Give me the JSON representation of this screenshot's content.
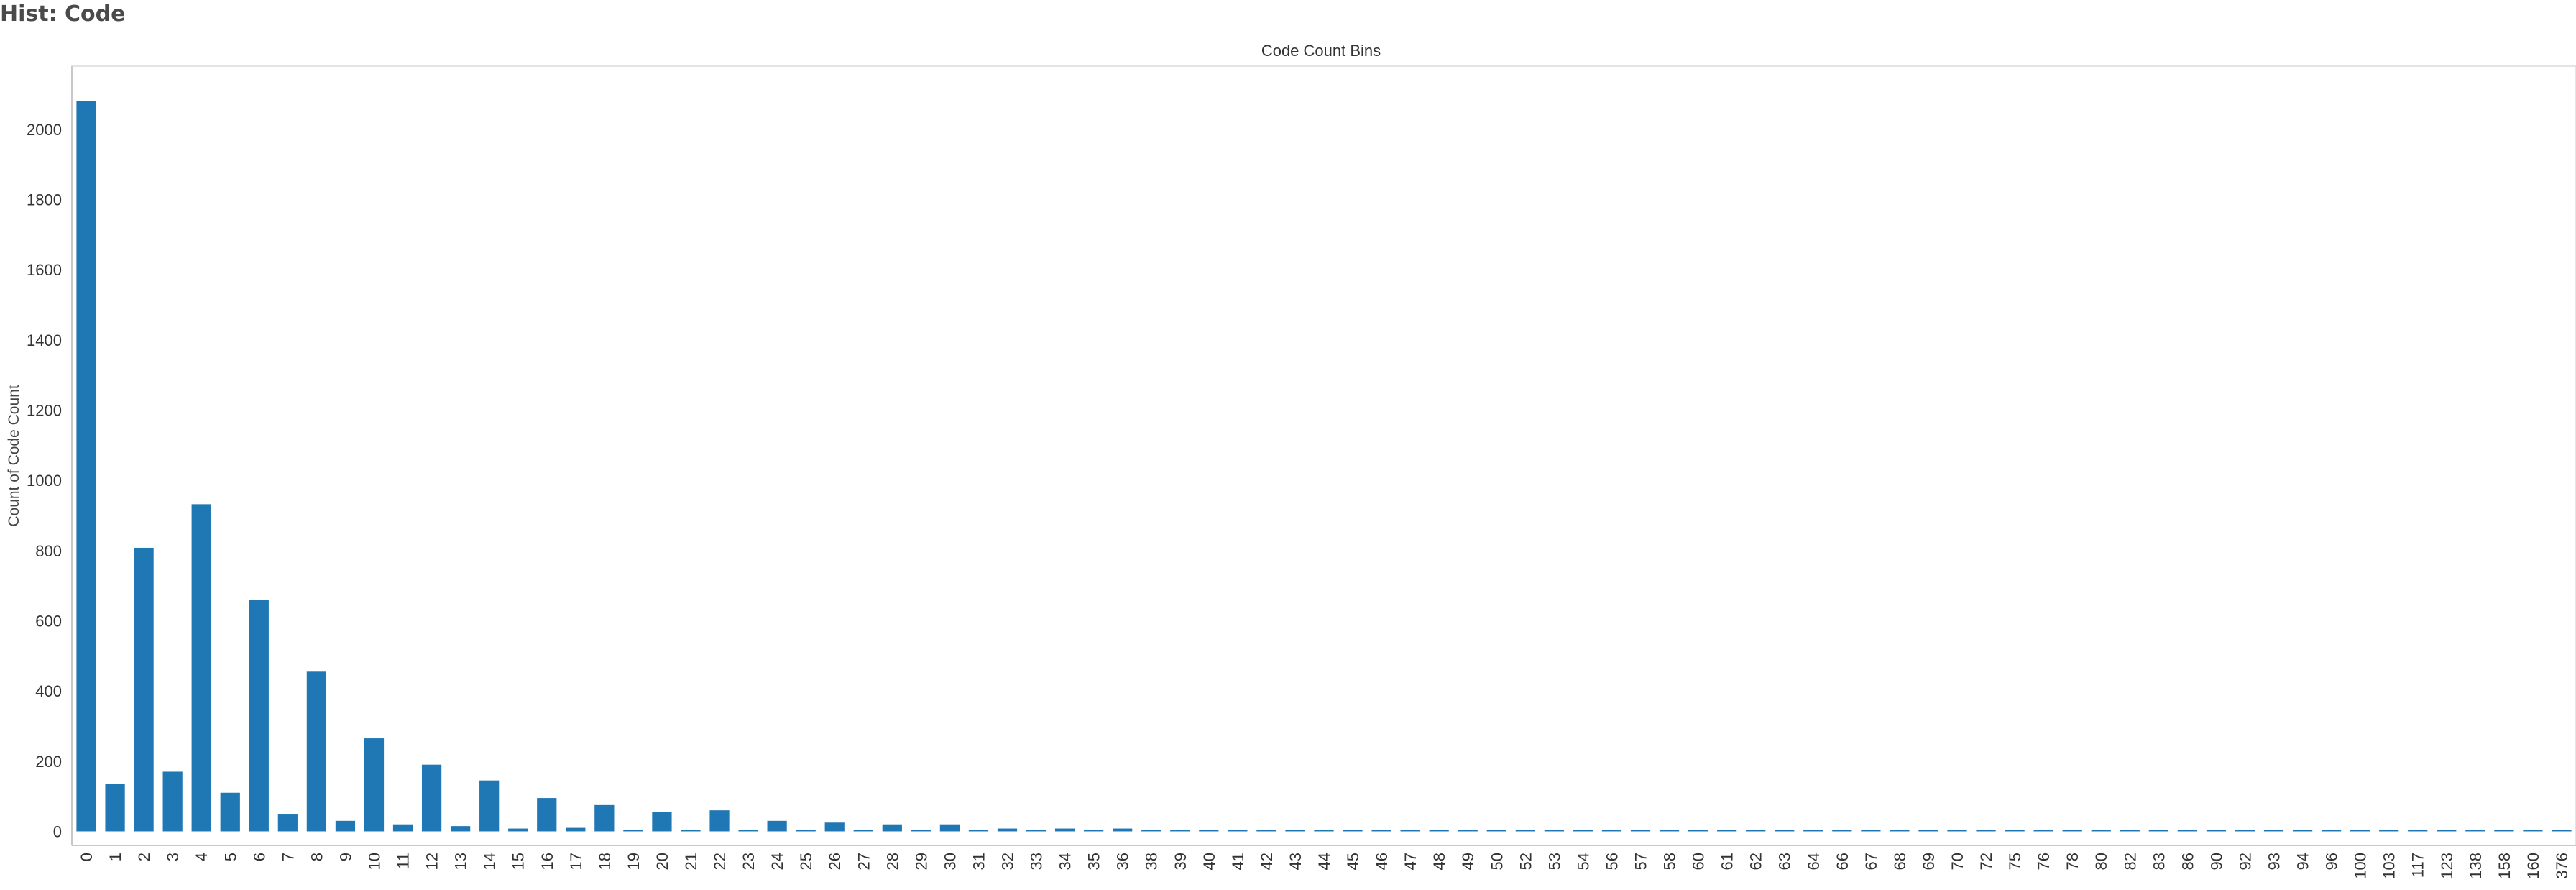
{
  "page": {
    "title": "Hist: Code"
  },
  "colors": {
    "bar": "#1f77b4",
    "axis": "#c8c8c8",
    "text": "#333333"
  },
  "chart_data": {
    "type": "bar",
    "title": "Code Count Bins",
    "xlabel": "",
    "ylabel": "Count of Code Count",
    "ylim": [
      -40,
      2180
    ],
    "yticks": [
      0,
      200,
      400,
      600,
      800,
      1000,
      1200,
      1400,
      1600,
      1800,
      2000
    ],
    "grid": false,
    "categories": [
      "0",
      "1",
      "2",
      "3",
      "4",
      "5",
      "6",
      "7",
      "8",
      "9",
      "10",
      "11",
      "12",
      "13",
      "14",
      "15",
      "16",
      "17",
      "18",
      "19",
      "20",
      "21",
      "22",
      "23",
      "24",
      "25",
      "26",
      "27",
      "28",
      "29",
      "30",
      "31",
      "32",
      "33",
      "34",
      "35",
      "36",
      "38",
      "39",
      "40",
      "41",
      "42",
      "43",
      "44",
      "45",
      "46",
      "47",
      "48",
      "49",
      "50",
      "52",
      "53",
      "54",
      "56",
      "57",
      "58",
      "60",
      "61",
      "62",
      "63",
      "64",
      "66",
      "67",
      "68",
      "69",
      "70",
      "72",
      "75",
      "76",
      "78",
      "80",
      "82",
      "83",
      "86",
      "90",
      "92",
      "93",
      "94",
      "96",
      "100",
      "103",
      "117",
      "123",
      "138",
      "158",
      "160",
      "376"
    ],
    "values": [
      2080,
      135,
      808,
      170,
      932,
      110,
      660,
      50,
      455,
      30,
      265,
      20,
      190,
      15,
      145,
      8,
      95,
      10,
      75,
      3,
      55,
      5,
      60,
      3,
      30,
      3,
      25,
      1,
      20,
      1,
      20,
      1,
      8,
      1,
      8,
      1,
      8,
      3,
      1,
      5,
      1,
      3,
      1,
      3,
      1,
      5,
      1,
      3,
      1,
      3,
      3,
      1,
      1,
      3,
      1,
      3,
      3,
      1,
      1,
      1,
      1,
      3,
      1,
      3,
      1,
      1,
      1,
      1,
      1,
      1,
      1,
      1,
      1,
      1,
      1,
      3,
      1,
      1,
      1,
      1,
      1,
      1,
      1,
      1,
      1,
      1,
      1
    ]
  }
}
